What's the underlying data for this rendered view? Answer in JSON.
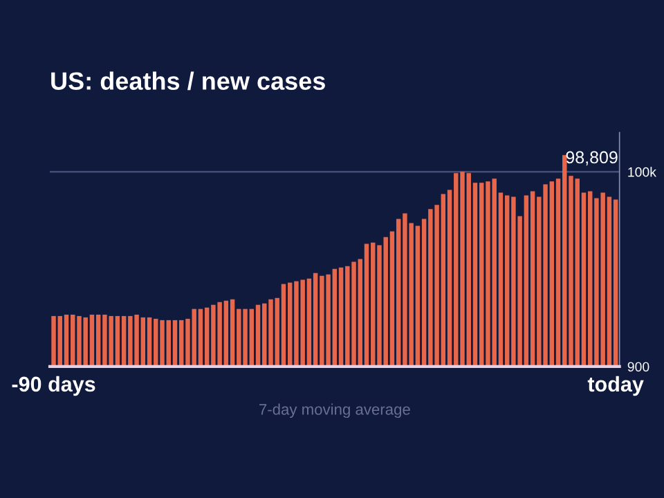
{
  "chart_data": {
    "type": "bar",
    "title": "US: deaths / new cases",
    "xlabel": "7-day moving average",
    "categories": [
      "-90 days",
      null,
      null,
      null,
      null,
      null,
      null,
      null,
      null,
      null,
      null,
      null,
      null,
      null,
      null,
      null,
      null,
      null,
      null,
      null,
      null,
      null,
      null,
      null,
      null,
      null,
      null,
      null,
      null,
      null,
      null,
      null,
      null,
      null,
      null,
      null,
      null,
      null,
      null,
      null,
      null,
      null,
      null,
      null,
      null,
      null,
      null,
      null,
      null,
      null,
      null,
      null,
      null,
      null,
      null,
      null,
      null,
      null,
      null,
      null,
      null,
      null,
      null,
      null,
      null,
      null,
      null,
      null,
      null,
      null,
      null,
      null,
      null,
      null,
      null,
      null,
      null,
      null,
      null,
      null,
      null,
      null,
      null,
      null,
      null,
      null,
      null,
      null,
      "today"
    ],
    "values": [
      26600,
      26600,
      27300,
      27300,
      26600,
      25900,
      27300,
      27300,
      27300,
      26600,
      26600,
      26600,
      26600,
      27300,
      25900,
      25900,
      25200,
      24500,
      24500,
      24500,
      24500,
      25200,
      30200,
      30200,
      30900,
      32300,
      33700,
      34400,
      35100,
      30200,
      30200,
      30200,
      32300,
      33000,
      35100,
      35800,
      42900,
      43600,
      44300,
      45000,
      45700,
      48500,
      47100,
      47800,
      50600,
      51300,
      52000,
      54200,
      55600,
      63300,
      64000,
      62600,
      66800,
      69700,
      76000,
      78800,
      73900,
      72500,
      76000,
      81000,
      83100,
      88700,
      90800,
      99300,
      100000,
      99300,
      94400,
      94400,
      95100,
      96500,
      89400,
      88000,
      87300,
      77400,
      88000,
      90100,
      87300,
      93600,
      95100,
      96500,
      108500,
      97900,
      96500,
      89400,
      90100,
      86600,
      89400,
      87300,
      85900
    ],
    "color": "#e8664a",
    "ylim": [
      900,
      120000
    ],
    "yticks": [
      {
        "value": 900,
        "label": "900"
      },
      {
        "value": 100000,
        "label": "100k"
      }
    ],
    "ref_lines": [
      {
        "axis": "y",
        "value": 100000,
        "color": "#4a5480"
      }
    ],
    "annotations": [
      "98,809"
    ]
  }
}
